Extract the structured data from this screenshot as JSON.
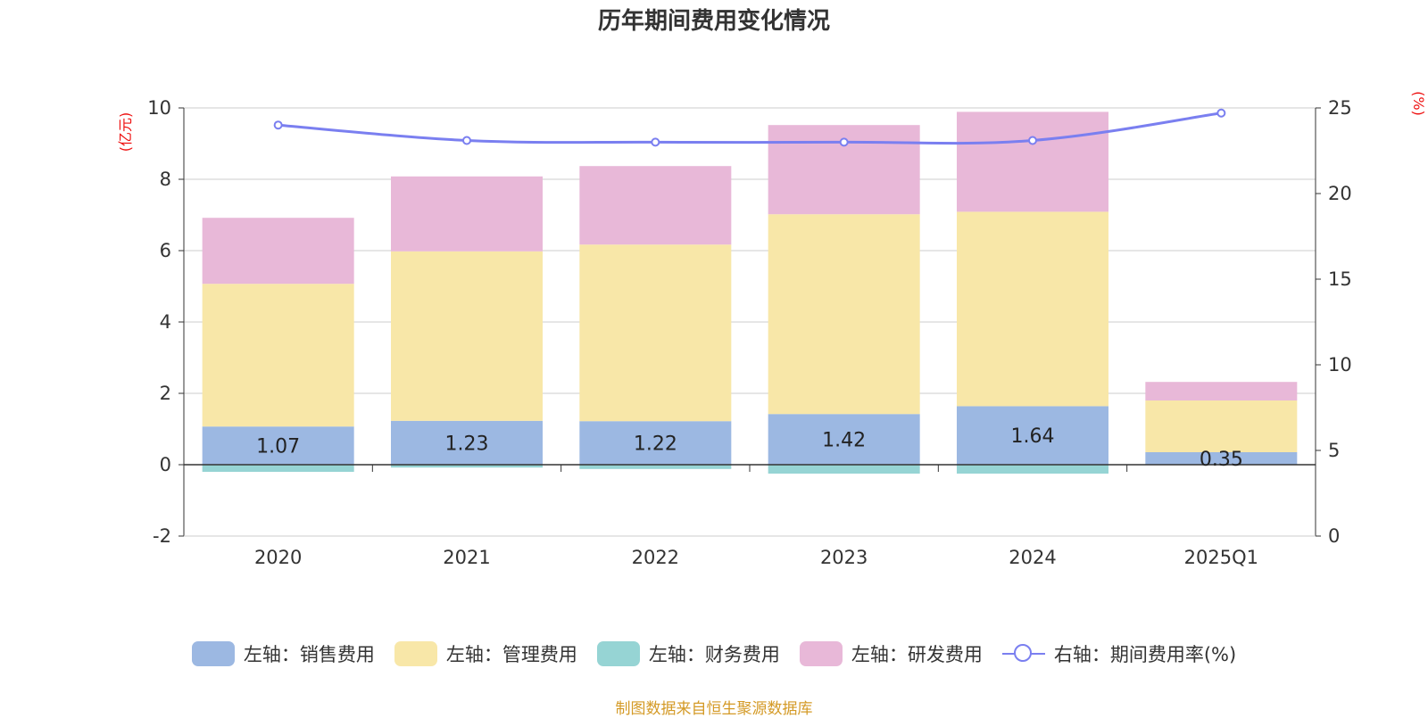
{
  "chart_data": {
    "type": "bar",
    "title": "历年期间费用变化情况",
    "categories": [
      "2020",
      "2021",
      "2022",
      "2023",
      "2024",
      "2025Q1"
    ],
    "left_axis": {
      "unit_label": "(亿元)",
      "ylim": [
        -2,
        10
      ],
      "ticks": [
        "-2",
        "0",
        "2",
        "4",
        "6",
        "8",
        "10"
      ]
    },
    "right_axis": {
      "unit_label": "(%)",
      "ylim": [
        0,
        25
      ],
      "ticks": [
        "0",
        "5",
        "10",
        "15",
        "20",
        "25"
      ]
    },
    "stacked": true,
    "grid": true,
    "legend_position": "bottom",
    "series": [
      {
        "name": "左轴：销售费用",
        "axis": "left",
        "color": "#9cb8e2",
        "values": [
          1.07,
          1.23,
          1.22,
          1.42,
          1.64,
          0.35
        ],
        "labels": [
          "1.07",
          "1.23",
          "1.22",
          "1.42",
          "1.64",
          "0.35"
        ]
      },
      {
        "name": "左轴：管理费用",
        "axis": "left",
        "color": "#f8e7a8",
        "values": [
          4.0,
          4.75,
          4.95,
          5.6,
          5.45,
          1.45
        ]
      },
      {
        "name": "左轴：财务费用",
        "axis": "left",
        "color": "#96d4d4",
        "values": [
          -0.2,
          -0.08,
          -0.12,
          -0.25,
          -0.25,
          0
        ]
      },
      {
        "name": "左轴：研发费用",
        "axis": "left",
        "color": "#e8b8d8",
        "values": [
          1.85,
          2.1,
          2.2,
          2.5,
          2.8,
          0.52
        ]
      },
      {
        "name": "右轴：期间费用率(%)",
        "axis": "right",
        "type": "line",
        "color": "#7a7ff0",
        "values": [
          24.0,
          23.1,
          23.0,
          23.0,
          23.1,
          24.7
        ]
      }
    ]
  },
  "source_note": "制图数据来自恒生聚源数据库"
}
